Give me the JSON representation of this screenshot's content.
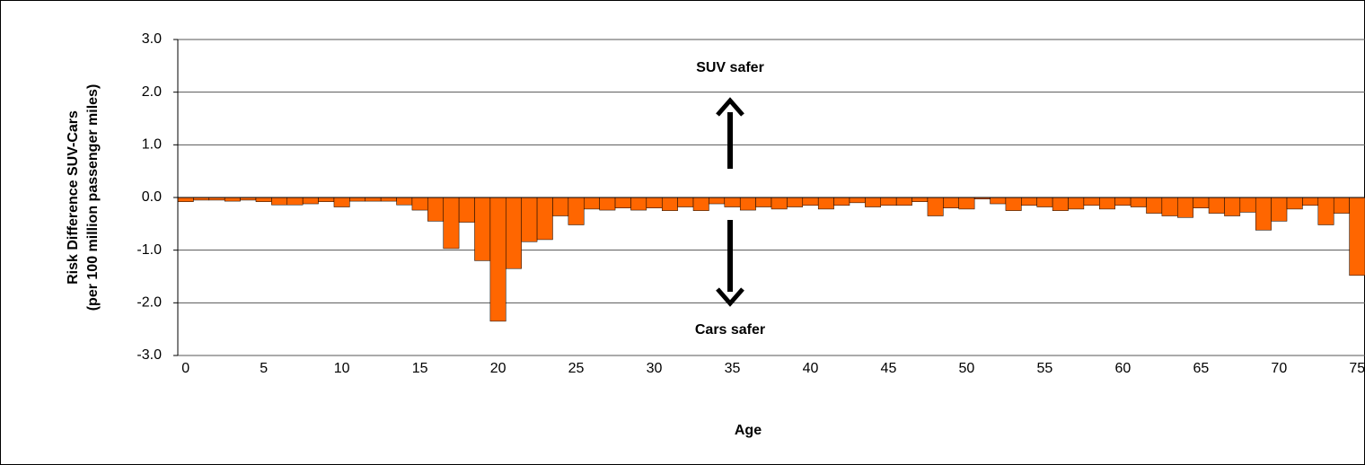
{
  "chart_data": {
    "type": "bar",
    "ylabel": [
      "Risk Difference SUV-Cars",
      "(per 100 million passenger miles)"
    ],
    "xlabel": "Age",
    "annotations": [
      "SUV safer",
      "Cars safer"
    ],
    "x": [
      0,
      1,
      2,
      3,
      4,
      5,
      6,
      7,
      8,
      9,
      10,
      11,
      12,
      13,
      14,
      15,
      16,
      17,
      18,
      19,
      20,
      21,
      22,
      23,
      24,
      25,
      26,
      27,
      28,
      29,
      30,
      31,
      32,
      33,
      34,
      35,
      36,
      37,
      38,
      39,
      40,
      41,
      42,
      43,
      44,
      45,
      46,
      47,
      48,
      49,
      50,
      51,
      52,
      53,
      54,
      55,
      56,
      57,
      58,
      59,
      60,
      61,
      62,
      63,
      64,
      65,
      66,
      67,
      68,
      69,
      70,
      71,
      72,
      73,
      74,
      75
    ],
    "values": [
      -0.08,
      -0.05,
      -0.05,
      -0.07,
      -0.05,
      -0.08,
      -0.14,
      -0.14,
      -0.12,
      -0.08,
      -0.18,
      -0.07,
      -0.07,
      -0.07,
      -0.14,
      -0.24,
      -0.45,
      -0.97,
      -0.47,
      -1.2,
      -2.35,
      -1.35,
      -0.84,
      -0.8,
      -0.35,
      -0.52,
      -0.22,
      -0.24,
      -0.2,
      -0.24,
      -0.2,
      -0.25,
      -0.18,
      -0.25,
      -0.12,
      -0.18,
      -0.24,
      -0.18,
      -0.22,
      -0.18,
      -0.15,
      -0.22,
      -0.15,
      -0.1,
      -0.18,
      -0.15,
      -0.15,
      -0.08,
      -0.35,
      -0.2,
      -0.22,
      -0.03,
      -0.12,
      -0.25,
      -0.15,
      -0.18,
      -0.25,
      -0.22,
      -0.15,
      -0.22,
      -0.15,
      -0.18,
      -0.3,
      -0.35,
      -0.38,
      -0.2,
      -0.3,
      -0.35,
      -0.28,
      -0.62,
      -0.45,
      -0.22,
      -0.15,
      -0.52,
      -0.3,
      -1.48
    ],
    "color": "#ff6600",
    "xlim": [
      -0.5,
      75.5
    ],
    "xticks": [
      0,
      5,
      10,
      15,
      20,
      25,
      30,
      35,
      40,
      45,
      50,
      55,
      60,
      65,
      70,
      75
    ],
    "ylim": [
      -3,
      3
    ],
    "yticks": [
      {
        "value": -3,
        "label": "-3.0"
      },
      {
        "value": -2,
        "label": "-2.0"
      },
      {
        "value": -1,
        "label": "-1.0"
      },
      {
        "value": 0,
        "label": "0.0"
      },
      {
        "value": 1,
        "label": "1.0"
      },
      {
        "value": 2,
        "label": "2.0"
      },
      {
        "value": 3,
        "label": "3.0"
      }
    ],
    "grid": true
  }
}
